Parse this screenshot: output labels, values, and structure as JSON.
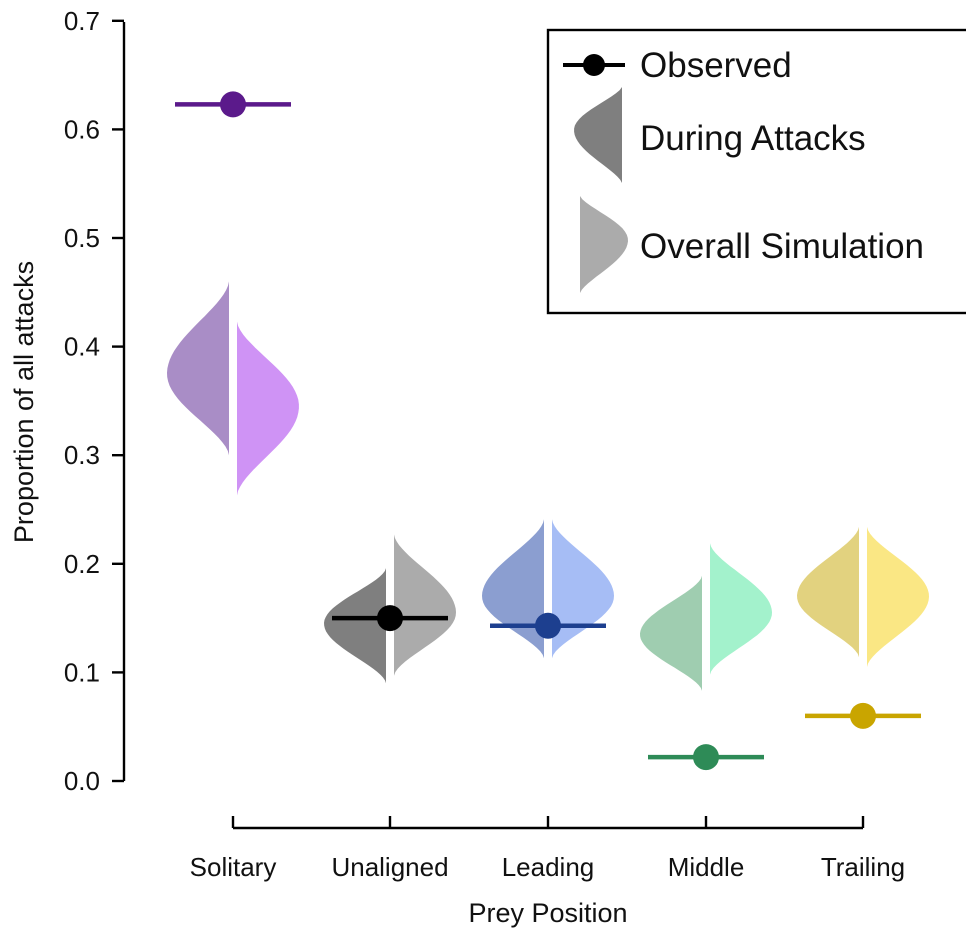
{
  "chart_data": {
    "type": "violin",
    "xlabel": "Prey Position",
    "ylabel": "Proportion of all attacks",
    "ylim": [
      0.0,
      0.7
    ],
    "yticks": [
      0.0,
      0.1,
      0.2,
      0.3,
      0.4,
      0.5,
      0.6,
      0.7
    ],
    "ytick_labels": [
      "0.0",
      "0.1",
      "0.2",
      "0.3",
      "0.4",
      "0.5",
      "0.6",
      "0.7"
    ],
    "categories": [
      "Solitary",
      "Unaligned",
      "Leading",
      "Middle",
      "Trailing"
    ],
    "legend": {
      "position": "top-right",
      "entries": [
        {
          "label": "Observed",
          "kind": "point"
        },
        {
          "label": "During Attacks",
          "kind": "left-half-violin"
        },
        {
          "label": "Overall Simulation",
          "kind": "right-half-violin"
        }
      ]
    },
    "series": [
      {
        "category": "Solitary",
        "observed": 0.623,
        "during_attacks": {
          "min": 0.3,
          "max": 0.46,
          "mode": 0.375
        },
        "overall_simulation": {
          "min": 0.263,
          "max": 0.423,
          "mode": 0.345
        },
        "colors": {
          "observed": "#5b1a8b",
          "during": "#a98dc6",
          "overall": "#cf93f5"
        }
      },
      {
        "category": "Unaligned",
        "observed": 0.15,
        "during_attacks": {
          "min": 0.09,
          "max": 0.196,
          "mode": 0.145
        },
        "overall_simulation": {
          "min": 0.097,
          "max": 0.227,
          "mode": 0.155
        },
        "colors": {
          "observed": "#000000",
          "during": "#7f7f7f",
          "overall": "#ababab"
        }
      },
      {
        "category": "Leading",
        "observed": 0.143,
        "during_attacks": {
          "min": 0.113,
          "max": 0.241,
          "mode": 0.17
        },
        "overall_simulation": {
          "min": 0.113,
          "max": 0.241,
          "mode": 0.17
        },
        "colors": {
          "observed": "#1d3f8f",
          "during": "#8b9ed0",
          "overall": "#a6bdf5"
        }
      },
      {
        "category": "Middle",
        "observed": 0.022,
        "during_attacks": {
          "min": 0.083,
          "max": 0.189,
          "mode": 0.135
        },
        "overall_simulation": {
          "min": 0.098,
          "max": 0.219,
          "mode": 0.155
        },
        "colors": {
          "observed": "#2e8b57",
          "during": "#9fcdb0",
          "overall": "#a3f2cc"
        }
      },
      {
        "category": "Trailing",
        "observed": 0.06,
        "during_attacks": {
          "min": 0.114,
          "max": 0.234,
          "mode": 0.17
        },
        "overall_simulation": {
          "min": 0.105,
          "max": 0.234,
          "mode": 0.17
        },
        "colors": {
          "observed": "#c9a500",
          "during": "#e2d27f",
          "overall": "#fae784"
        }
      }
    ]
  }
}
